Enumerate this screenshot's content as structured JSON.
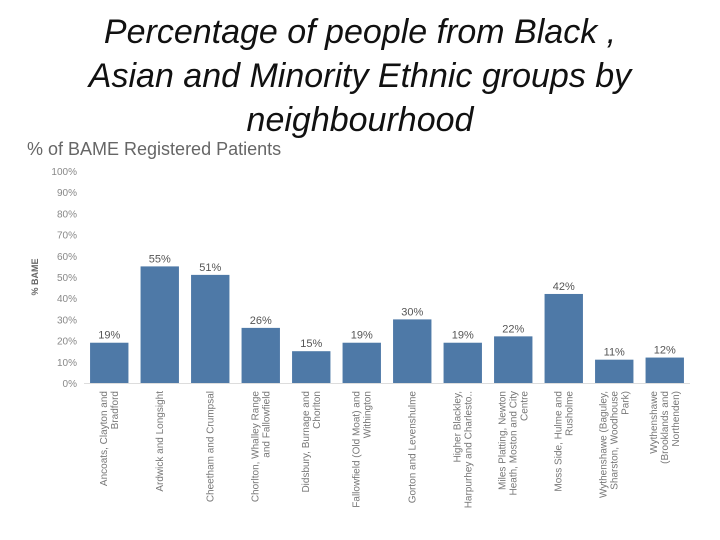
{
  "slide": {
    "title_lines": [
      "Percentage of people from Black ,",
      "Asian and Minority Ethnic groups by",
      "neighbourhood"
    ]
  },
  "chart_data": {
    "type": "bar",
    "title": "% of BAME Registered Patients",
    "ylabel": "% BAME",
    "xlabel": "",
    "ylim": [
      0,
      100
    ],
    "y_ticks": [
      "0%",
      "10%",
      "20%",
      "30%",
      "40%",
      "50%",
      "60%",
      "70%",
      "80%",
      "90%",
      "100%"
    ],
    "bar_color": "#4e79a7",
    "categories": [
      [
        "Ancoats, Clayton and",
        "Bradford"
      ],
      [
        "Ardwick and Longsight"
      ],
      [
        "Cheetham and Crumpsal"
      ],
      [
        "Chorlton, Whalley Range",
        "and Fallowfield"
      ],
      [
        "Didsbury, Burnage and",
        "Chorlton"
      ],
      [
        "Fallowfield (Old Moat) and",
        "Withington"
      ],
      [
        "Gorton and Levenshulme"
      ],
      [
        "Higher Blackley,",
        "Harpurhey and Charlesto.."
      ],
      [
        "Miles Platting, Newton",
        "Heath, Moston and City",
        "Centre"
      ],
      [
        "Moss Side, Hulme and",
        "Rusholme"
      ],
      [
        "Wythenshawe (Baguley,",
        "Sharston, Woodhouse",
        "Park)"
      ],
      [
        "Wythenshawe",
        "(Brooklands and",
        "Northenden)"
      ]
    ],
    "values": [
      19,
      55,
      51,
      26,
      15,
      19,
      30,
      19,
      22,
      42,
      11,
      12
    ],
    "data_labels": [
      "19%",
      "55%",
      "51%",
      "26%",
      "15%",
      "19%",
      "30%",
      "19%",
      "22%",
      "42%",
      "11%",
      "12%"
    ]
  }
}
